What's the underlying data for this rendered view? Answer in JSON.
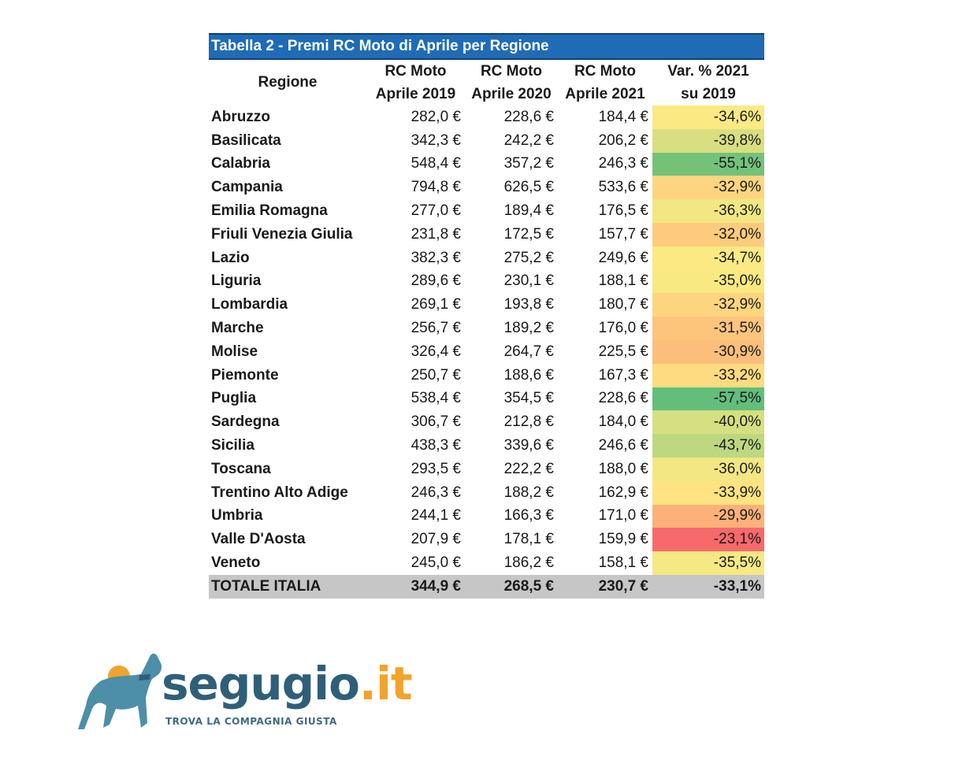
{
  "table": {
    "title": "Tabella 2 - Premi RC Moto di Aprile per Regione",
    "headers": {
      "regione": "Regione",
      "col1_line1": "RC Moto",
      "col1_line2": "Aprile 2019",
      "col2_line1": "RC Moto",
      "col2_line2": "Aprile 2020",
      "col3_line1": "RC Moto",
      "col3_line2": "Aprile 2021",
      "col4_line1": "Var. % 2021",
      "col4_line2": "su 2019"
    },
    "rows": [
      {
        "regione": "Abruzzo",
        "v2019": "282,0 €",
        "v2020": "228,6 €",
        "v2021": "184,4 €",
        "var": "-34,6%",
        "color": "#fbe983"
      },
      {
        "regione": "Basilicata",
        "v2019": "342,3 €",
        "v2020": "242,2 €",
        "v2021": "206,2 €",
        "var": "-39,8%",
        "color": "#d7df81"
      },
      {
        "regione": "Calabria",
        "v2019": "548,4 €",
        "v2020": "357,2 €",
        "v2021": "246,3 €",
        "var": "-55,1%",
        "color": "#74c27a"
      },
      {
        "regione": "Campania",
        "v2019": "794,8 €",
        "v2020": "626,5 €",
        "v2021": "533,6 €",
        "var": "-32,9%",
        "color": "#fdd57f"
      },
      {
        "regione": "Emilia Romagna",
        "v2019": "277,0 €",
        "v2020": "189,4 €",
        "v2021": "176,5 €",
        "var": "-36,3%",
        "color": "#f1e783"
      },
      {
        "regione": "Friuli Venezia Giulia",
        "v2019": "231,8 €",
        "v2020": "172,5 €",
        "v2021": "157,7 €",
        "var": "-32,0%",
        "color": "#fdcb7d"
      },
      {
        "regione": "Lazio",
        "v2019": "382,3 €",
        "v2020": "275,2 €",
        "v2021": "249,6 €",
        "var": "-34,7%",
        "color": "#fbea83"
      },
      {
        "regione": "Liguria",
        "v2019": "289,6 €",
        "v2020": "230,1 €",
        "v2021": "188,1 €",
        "var": "-35,0%",
        "color": "#f8e983"
      },
      {
        "regione": "Lombardia",
        "v2019": "269,1 €",
        "v2020": "193,8 €",
        "v2021": "180,7 €",
        "var": "-32,9%",
        "color": "#fdd57f"
      },
      {
        "regione": "Marche",
        "v2019": "256,7 €",
        "v2020": "189,2 €",
        "v2021": "176,0 €",
        "var": "-31,5%",
        "color": "#fdc57c"
      },
      {
        "regione": "Molise",
        "v2019": "326,4 €",
        "v2020": "264,7 €",
        "v2021": "225,5 €",
        "var": "-30,9%",
        "color": "#fcbe7b"
      },
      {
        "regione": "Piemonte",
        "v2019": "250,7 €",
        "v2020": "188,6 €",
        "v2021": "167,3 €",
        "var": "-33,2%",
        "color": "#fedb80"
      },
      {
        "regione": "Puglia",
        "v2019": "538,4 €",
        "v2020": "354,5 €",
        "v2021": "228,6 €",
        "var": "-57,5%",
        "color": "#63be7b"
      },
      {
        "regione": "Sardegna",
        "v2019": "306,7 €",
        "v2020": "212,8 €",
        "v2021": "184,0 €",
        "var": "-40,0%",
        "color": "#d6df81"
      },
      {
        "regione": "Sicilia",
        "v2019": "438,3 €",
        "v2020": "339,6 €",
        "v2021": "246,6 €",
        "var": "-43,7%",
        "color": "#bcd880"
      },
      {
        "regione": "Toscana",
        "v2019": "293,5 €",
        "v2020": "222,2 €",
        "v2021": "188,0 €",
        "var": "-36,0%",
        "color": "#f3e783"
      },
      {
        "regione": "Trentino Alto Adige",
        "v2019": "246,3 €",
        "v2020": "188,2 €",
        "v2021": "162,9 €",
        "var": "-33,9%",
        "color": "#ffe382"
      },
      {
        "regione": "Umbria",
        "v2019": "244,1 €",
        "v2020": "166,3 €",
        "v2021": "171,0 €",
        "var": "-29,9%",
        "color": "#fbb179"
      },
      {
        "regione": "Valle D'Aosta",
        "v2019": "207,9 €",
        "v2020": "178,1 €",
        "v2021": "159,9 €",
        "var": "-23,1%",
        "color": "#f8696b"
      },
      {
        "regione": "Veneto",
        "v2019": "245,0 €",
        "v2020": "186,2 €",
        "v2021": "158,1 €",
        "var": "-35,5%",
        "color": "#f6e883"
      }
    ],
    "total": {
      "regione": "TOTALE ITALIA",
      "v2019": "344,9 €",
      "v2020": "268,5 €",
      "v2021": "230,7 €",
      "var": "-33,1%"
    }
  },
  "logo": {
    "brand_main": "segugio",
    "brand_tld": ".it",
    "tagline": "TROVA LA COMPAGNIA GIUSTA",
    "dog_color": "#4d8ea8",
    "sun_color": "#f0a42c"
  }
}
